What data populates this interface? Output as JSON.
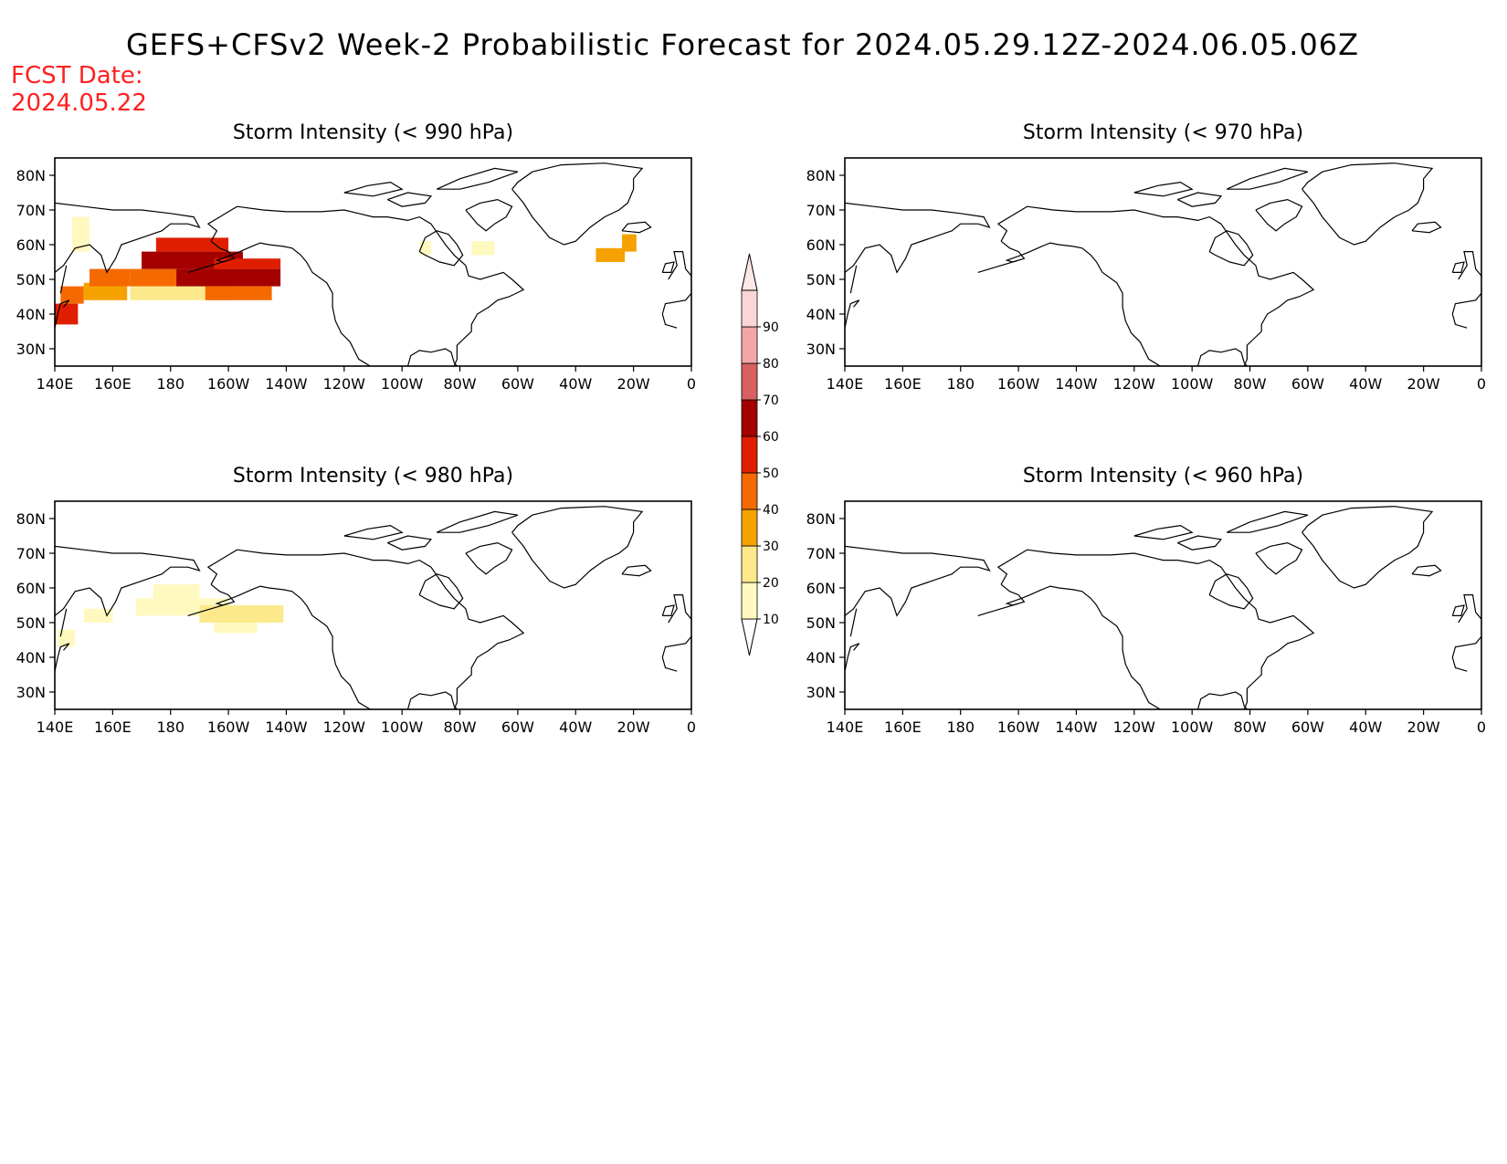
{
  "title": "GEFS+CFSv2 Week-2 Probabilistic Forecast for 2024.05.29.12Z-2024.06.05.06Z",
  "fcst_date_label": "FCST Date:",
  "fcst_date_value": "2024.05.22",
  "panels": [
    {
      "title": "Storm Intensity (< 990 hPa)",
      "threshold_hpa": 990
    },
    {
      "title": "Storm Intensity (< 970 hPa)",
      "threshold_hpa": 970
    },
    {
      "title": "Storm Intensity (< 980 hPa)",
      "threshold_hpa": 980
    },
    {
      "title": "Storm Intensity (< 960 hPa)",
      "threshold_hpa": 960
    }
  ],
  "lat_ticks": [
    "30N",
    "40N",
    "50N",
    "60N",
    "70N",
    "80N"
  ],
  "lon_ticks": [
    "140E",
    "160E",
    "180",
    "160W",
    "140W",
    "120W",
    "100W",
    "80W",
    "60W",
    "40W",
    "20W",
    "0"
  ],
  "colorbar": {
    "labels": [
      "10",
      "20",
      "30",
      "40",
      "50",
      "60",
      "70",
      "80",
      "90"
    ],
    "colors": [
      "#fff9c0",
      "#fce98c",
      "#f5a200",
      "#f46a00",
      "#df1e00",
      "#a40000",
      "#d96060",
      "#f2a6a6",
      "#fbd6d6"
    ]
  },
  "chart_data": [
    {
      "type": "heatmap",
      "title": "Storm Intensity (< 990 hPa)",
      "x_unit": "longitude (deg E, 0-360)",
      "y_unit": "latitude (deg N)",
      "xlim": [
        140,
        360
      ],
      "ylim": [
        25,
        85
      ],
      "cells": [
        {
          "lon": [
            140,
            148
          ],
          "lat": [
            37,
            43
          ],
          "p": 55
        },
        {
          "lon": [
            142,
            150
          ],
          "lat": [
            43,
            48
          ],
          "p": 45
        },
        {
          "lon": [
            150,
            165
          ],
          "lat": [
            44,
            49
          ],
          "p": 35
        },
        {
          "lon": [
            152,
            166
          ],
          "lat": [
            48,
            53
          ],
          "p": 45
        },
        {
          "lon": [
            166,
            200
          ],
          "lat": [
            44,
            48
          ],
          "p": 25
        },
        {
          "lon": [
            166,
            182
          ],
          "lat": [
            48,
            53
          ],
          "p": 45
        },
        {
          "lon": [
            170,
            205
          ],
          "lat": [
            53,
            58
          ],
          "p": 65
        },
        {
          "lon": [
            175,
            200
          ],
          "lat": [
            58,
            62
          ],
          "p": 55
        },
        {
          "lon": [
            182,
            218
          ],
          "lat": [
            48,
            53
          ],
          "p": 65
        },
        {
          "lon": [
            192,
            215
          ],
          "lat": [
            44,
            48
          ],
          "p": 45
        },
        {
          "lon": [
            195,
            218
          ],
          "lat": [
            53,
            56
          ],
          "p": 55
        },
        {
          "lon": [
            146,
            152
          ],
          "lat": [
            58,
            68
          ],
          "p": 15
        },
        {
          "lon": [
            266,
            270
          ],
          "lat": [
            57,
            61
          ],
          "p": 15
        },
        {
          "lon": [
            284,
            292
          ],
          "lat": [
            57,
            61
          ],
          "p": 15
        },
        {
          "lon": [
            327,
            337
          ],
          "lat": [
            55,
            59
          ],
          "p": 35
        },
        {
          "lon": [
            336,
            341
          ],
          "lat": [
            58,
            63
          ],
          "p": 35
        }
      ]
    },
    {
      "type": "heatmap",
      "title": "Storm Intensity (< 970 hPa)",
      "x_unit": "longitude (deg E, 0-360)",
      "y_unit": "latitude (deg N)",
      "xlim": [
        140,
        360
      ],
      "ylim": [
        25,
        85
      ],
      "cells": []
    },
    {
      "type": "heatmap",
      "title": "Storm Intensity (< 980 hPa)",
      "x_unit": "longitude (deg E, 0-360)",
      "y_unit": "latitude (deg N)",
      "xlim": [
        140,
        360
      ],
      "ylim": [
        25,
        85
      ],
      "cells": [
        {
          "lon": [
            141,
            147
          ],
          "lat": [
            43,
            48
          ],
          "p": 15
        },
        {
          "lon": [
            150,
            160
          ],
          "lat": [
            50,
            54
          ],
          "p": 15
        },
        {
          "lon": [
            168,
            200
          ],
          "lat": [
            52,
            57
          ],
          "p": 15
        },
        {
          "lon": [
            174,
            190
          ],
          "lat": [
            57,
            61
          ],
          "p": 15
        },
        {
          "lon": [
            190,
            219
          ],
          "lat": [
            50,
            55
          ],
          "p": 25
        },
        {
          "lon": [
            195,
            210
          ],
          "lat": [
            47,
            50
          ],
          "p": 15
        }
      ]
    },
    {
      "type": "heatmap",
      "title": "Storm Intensity (< 960 hPa)",
      "x_unit": "longitude (deg E, 0-360)",
      "y_unit": "latitude (deg N)",
      "xlim": [
        140,
        360
      ],
      "ylim": [
        25,
        85
      ],
      "cells": []
    }
  ]
}
